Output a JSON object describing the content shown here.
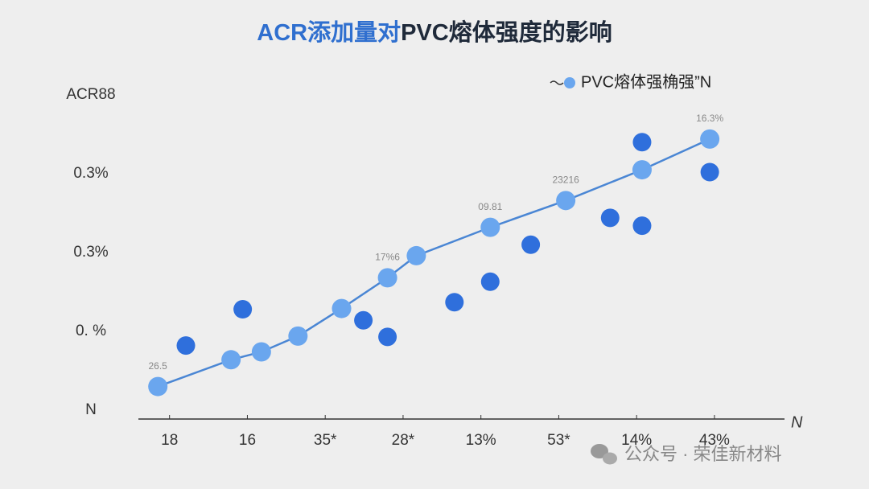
{
  "chart_data": {
    "type": "line",
    "title": [
      "ACR添加量对",
      "PVC熔体强度的影响"
    ],
    "title_colors": [
      "#2f6fcf",
      "#1f2a3a"
    ],
    "xlabel": "N",
    "xlim": [
      0.6,
      8.9
    ],
    "ylim": [
      0,
      4
    ],
    "xticks": [
      {
        "value": 1,
        "label": "18"
      },
      {
        "value": 2,
        "label": "16"
      },
      {
        "value": 3,
        "label": "35*"
      },
      {
        "value": 4,
        "label": "28*"
      },
      {
        "value": 5,
        "label": "13%"
      },
      {
        "value": 6,
        "label": "53*"
      },
      {
        "value": 7,
        "label": "14%"
      },
      {
        "value": 8,
        "label": "43%"
      }
    ],
    "yticks": [
      {
        "value": 0,
        "label": "N"
      },
      {
        "value": 1,
        "label": "0. %"
      },
      {
        "value": 2,
        "label": "0.3%"
      },
      {
        "value": 3,
        "label": "0.3%"
      },
      {
        "value": 4,
        "label": "ACR88"
      }
    ],
    "grid": false,
    "legend": "top-right",
    "series": [
      {
        "name": "PVC熔体强桷强”N",
        "type": "line",
        "color": "#6aa6ee",
        "line_color": "#4a86d4",
        "x": [
          0.85,
          1.79,
          2.18,
          2.65,
          3.21,
          3.8,
          4.17,
          5.12,
          6.09,
          7.07,
          7.94
        ],
        "values": [
          0.3,
          0.64,
          0.74,
          0.94,
          1.29,
          1.68,
          1.96,
          2.32,
          2.66,
          3.05,
          3.44
        ]
      },
      {
        "type": "scatter",
        "color": "#2f6fdc",
        "x": [
          1.21,
          1.94,
          3.49,
          3.8,
          4.66,
          5.12,
          5.64,
          6.66,
          7.07,
          7.07,
          7.94
        ],
        "values": [
          0.82,
          1.28,
          1.14,
          0.93,
          1.37,
          1.63,
          2.1,
          2.44,
          3.4,
          2.34,
          3.02
        ]
      }
    ],
    "annotations": [
      {
        "text": "26.5",
        "x": 0.85,
        "y": 0.3
      },
      {
        "text": "17%6",
        "x": 3.8,
        "y": 1.68
      },
      {
        "text": "09.81",
        "x": 5.12,
        "y": 2.32
      },
      {
        "text": "23216",
        "x": 6.09,
        "y": 2.66
      },
      {
        "text": "16.3%",
        "x": 7.94,
        "y": 3.44
      }
    ],
    "watermark": "公众号 · 荣佳新材料"
  }
}
